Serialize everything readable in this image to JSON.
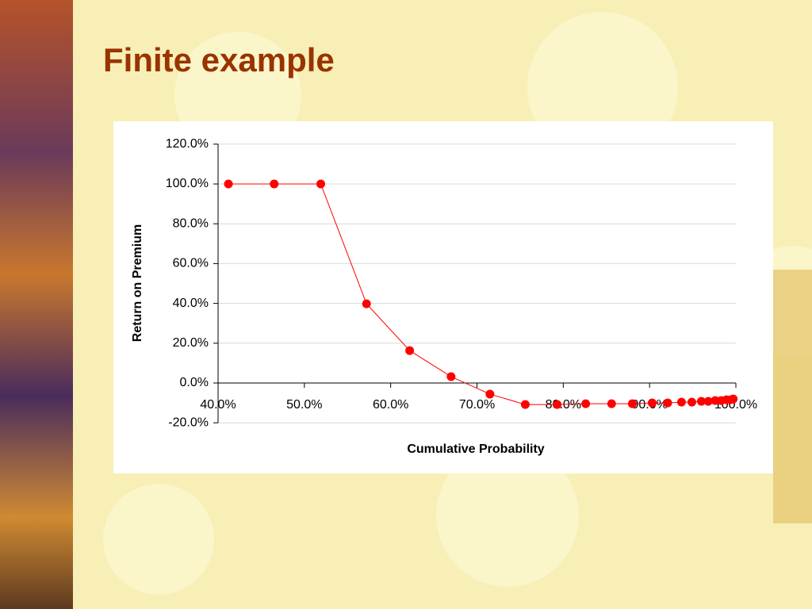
{
  "title": "Finite example",
  "chart_data": {
    "type": "line",
    "x_label": "Cumulative Probability",
    "y_label": "Return on Premium",
    "xlim": [
      40,
      100
    ],
    "ylim": [
      -20,
      120
    ],
    "xticks": [
      {
        "value": 40,
        "label": "40.0%"
      },
      {
        "value": 50,
        "label": "50.0%"
      },
      {
        "value": 60,
        "label": "60.0%"
      },
      {
        "value": 70,
        "label": "70.0%"
      },
      {
        "value": 80,
        "label": "80.0%"
      },
      {
        "value": 90,
        "label": "90.0%"
      },
      {
        "value": 100,
        "label": "100.0%"
      }
    ],
    "yticks": [
      {
        "value": -20,
        "label": "-20.0%"
      },
      {
        "value": 0,
        "label": "0.0%"
      },
      {
        "value": 20,
        "label": "20.0%"
      },
      {
        "value": 40,
        "label": "40.0%"
      },
      {
        "value": 60,
        "label": "60.0%"
      },
      {
        "value": 80,
        "label": "80.0%"
      },
      {
        "value": 100,
        "label": "100.0%"
      },
      {
        "value": 120,
        "label": "120.0%"
      }
    ],
    "grid": true,
    "series": [
      {
        "color": "#ff0000",
        "x": [
          41.2,
          46.5,
          51.9,
          57.2,
          62.2,
          67.0,
          71.5,
          75.6,
          79.3,
          82.6,
          85.6,
          88.0,
          90.3,
          92.1,
          93.7,
          94.9,
          96.0,
          96.8,
          97.6,
          98.3,
          98.9,
          99.4,
          99.7
        ],
        "values": [
          100,
          100,
          100,
          39.8,
          16.3,
          3.2,
          -5.6,
          -10.8,
          -10.8,
          -10.4,
          -10.4,
          -10.4,
          -10,
          -10,
          -9.6,
          -9.6,
          -9.2,
          -9.2,
          -8.8,
          -8.8,
          -8.4,
          -8.4,
          -8
        ]
      }
    ]
  }
}
